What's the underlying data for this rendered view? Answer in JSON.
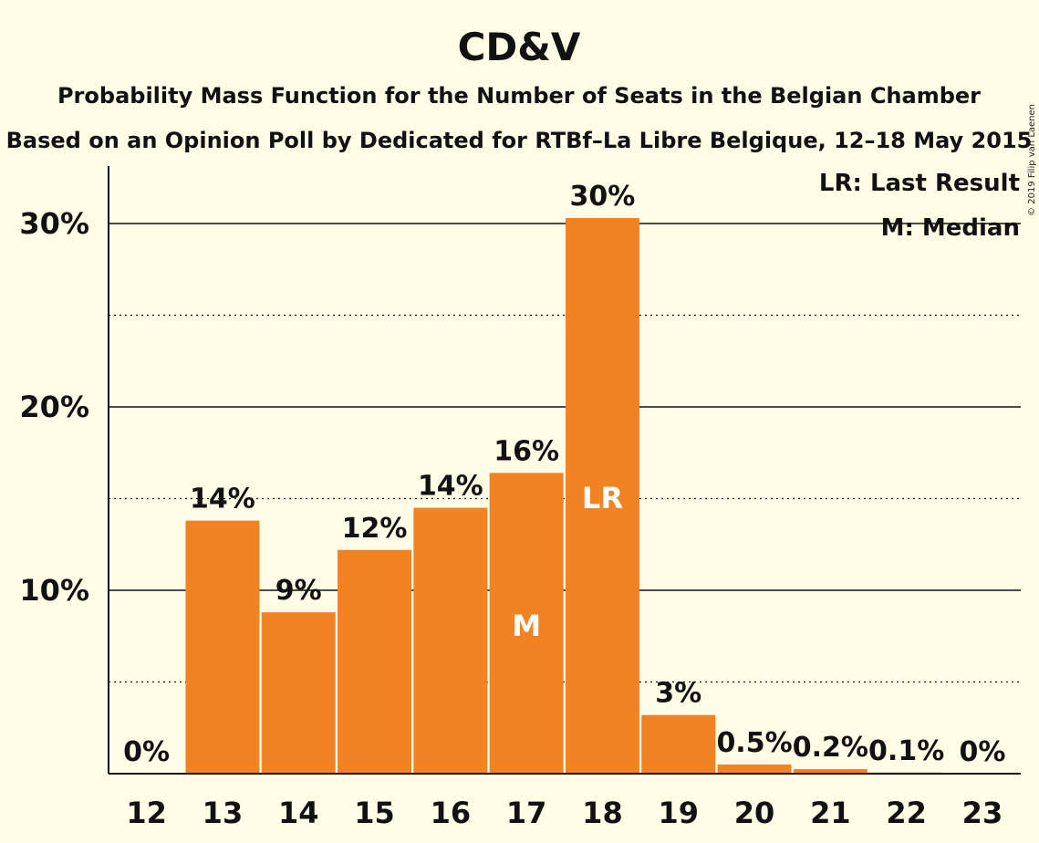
{
  "title": "CD&V",
  "subtitle": "Probability Mass Function for the Number of Seats in the Belgian Chamber",
  "subtitle2": "Based on an Opinion Poll by Dedicated for RTBf–La Libre Belgique, 12–18 May 2015",
  "copyright": "© 2019 Filip van Laenen",
  "legend": {
    "lr": "LR: Last Result",
    "m": "M: Median"
  },
  "colors": {
    "bar": "#f28322",
    "background": "#fffde6"
  },
  "chart_data": {
    "type": "bar",
    "categories": [
      "12",
      "13",
      "14",
      "15",
      "16",
      "17",
      "18",
      "19",
      "20",
      "21",
      "22",
      "23"
    ],
    "values": [
      0,
      13.8,
      8.8,
      12.2,
      14.5,
      16.4,
      30.3,
      3.2,
      0.5,
      0.25,
      0.06,
      0
    ],
    "labels": [
      "0%",
      "14%",
      "9%",
      "12%",
      "14%",
      "16%",
      "30%",
      "3%",
      "0.5%",
      "0.2%",
      "0.1%",
      "0%"
    ],
    "inside_markers": {
      "17": "M",
      "18": "LR"
    },
    "yticks": [
      10,
      20,
      30
    ],
    "ytick_labels": [
      "10%",
      "20%",
      "30%"
    ],
    "ylim": [
      0,
      33
    ],
    "grid": "solid at 10% steps, dotted at 5% steps",
    "legend_placement": "top-right"
  }
}
